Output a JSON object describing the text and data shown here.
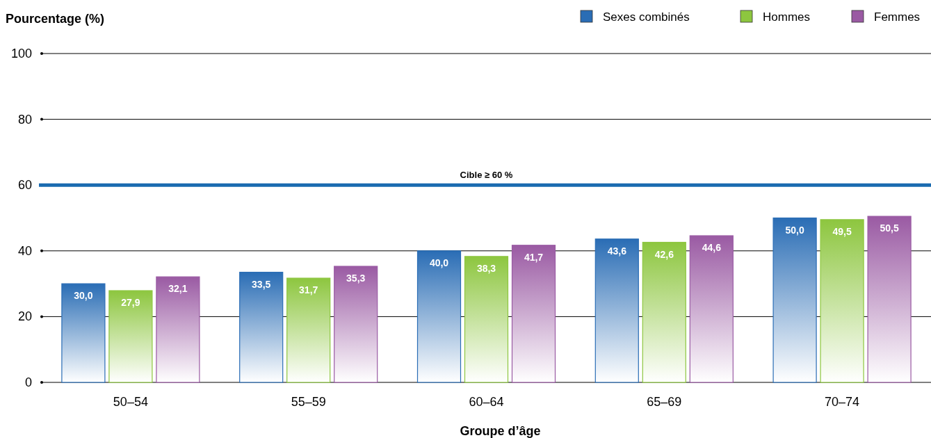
{
  "chart_data": {
    "type": "bar",
    "ylabel": "Pourcentage (%)",
    "xlabel": "Groupe d’âge",
    "categories": [
      "50–54",
      "55–59",
      "60–64",
      "65–69",
      "70–74"
    ],
    "series": [
      {
        "name": "Sexes combinés",
        "color": "#2a6db5",
        "values": [
          30.0,
          33.5,
          40.0,
          43.6,
          50.0
        ],
        "value_labels": [
          "30,0",
          "33,5",
          "40,0",
          "43,6",
          "50,0"
        ]
      },
      {
        "name": "Hommes",
        "color": "#8dc63f",
        "values": [
          27.9,
          31.7,
          38.3,
          42.6,
          49.5
        ],
        "value_labels": [
          "27,9",
          "31,7",
          "38,3",
          "42,6",
          "49,5"
        ]
      },
      {
        "name": "Femmes",
        "color": "#9a5aa3",
        "values": [
          32.1,
          35.3,
          41.7,
          44.6,
          50.5
        ],
        "value_labels": [
          "32,1",
          "35,3",
          "41,7",
          "44,6",
          "50,5"
        ]
      }
    ],
    "ylim": [
      0,
      100
    ],
    "yticks": [
      0,
      20,
      40,
      60,
      80,
      100
    ],
    "grid": "y",
    "legend": "top right",
    "ref_lines": [
      {
        "axis": "y",
        "value": 60,
        "label": "Cible ≥ 60 %",
        "color": "#1a6bb0"
      }
    ]
  }
}
